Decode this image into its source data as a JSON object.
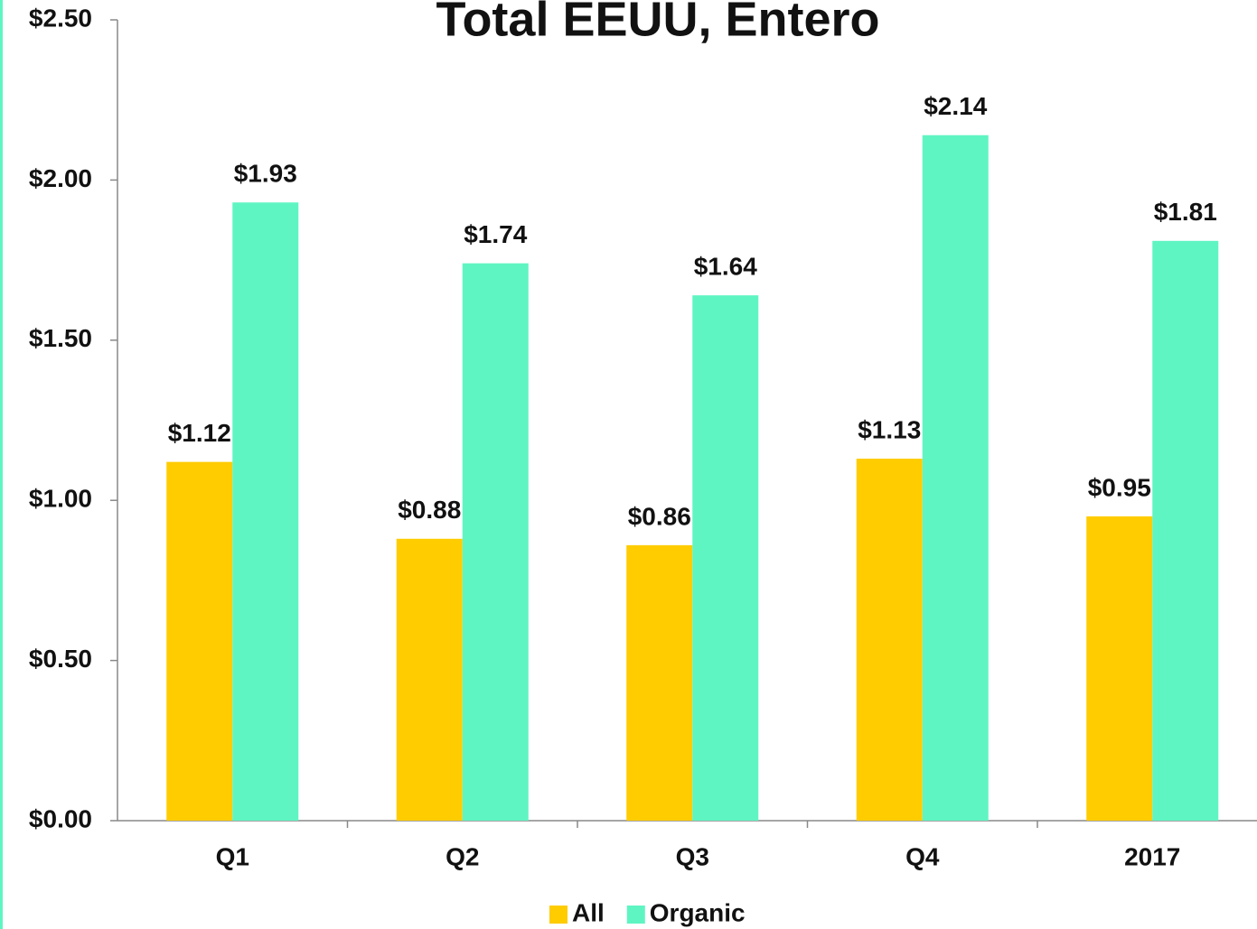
{
  "chart_data": {
    "type": "bar",
    "title": "Total EEUU, Entero",
    "categories": [
      "Q1",
      "Q2",
      "Q3",
      "Q4",
      "2017"
    ],
    "series": [
      {
        "name": "All",
        "color": "#FFCC00",
        "values": [
          1.12,
          0.88,
          0.86,
          1.13,
          0.95
        ],
        "value_labels": [
          "$1.12",
          "$0.88",
          "$0.86",
          "$1.13",
          "$0.95"
        ]
      },
      {
        "name": "Organic",
        "color": "#5FF5C2",
        "values": [
          1.93,
          1.74,
          1.64,
          2.14,
          1.81
        ],
        "value_labels": [
          "$1.93",
          "$1.74",
          "$1.64",
          "$2.14",
          "$1.81"
        ]
      }
    ],
    "ylim": [
      0,
      2.5
    ],
    "yticks": [
      {
        "value": 0,
        "label": "$0.00"
      },
      {
        "value": 0.5,
        "label": "$0.50"
      },
      {
        "value": 1,
        "label": "$1.00"
      },
      {
        "value": 1.5,
        "label": "$1.50"
      },
      {
        "value": 2,
        "label": "$2.00"
      },
      {
        "value": 2.5,
        "label": "$2.50"
      }
    ],
    "grid": false,
    "legend": "bottom"
  }
}
